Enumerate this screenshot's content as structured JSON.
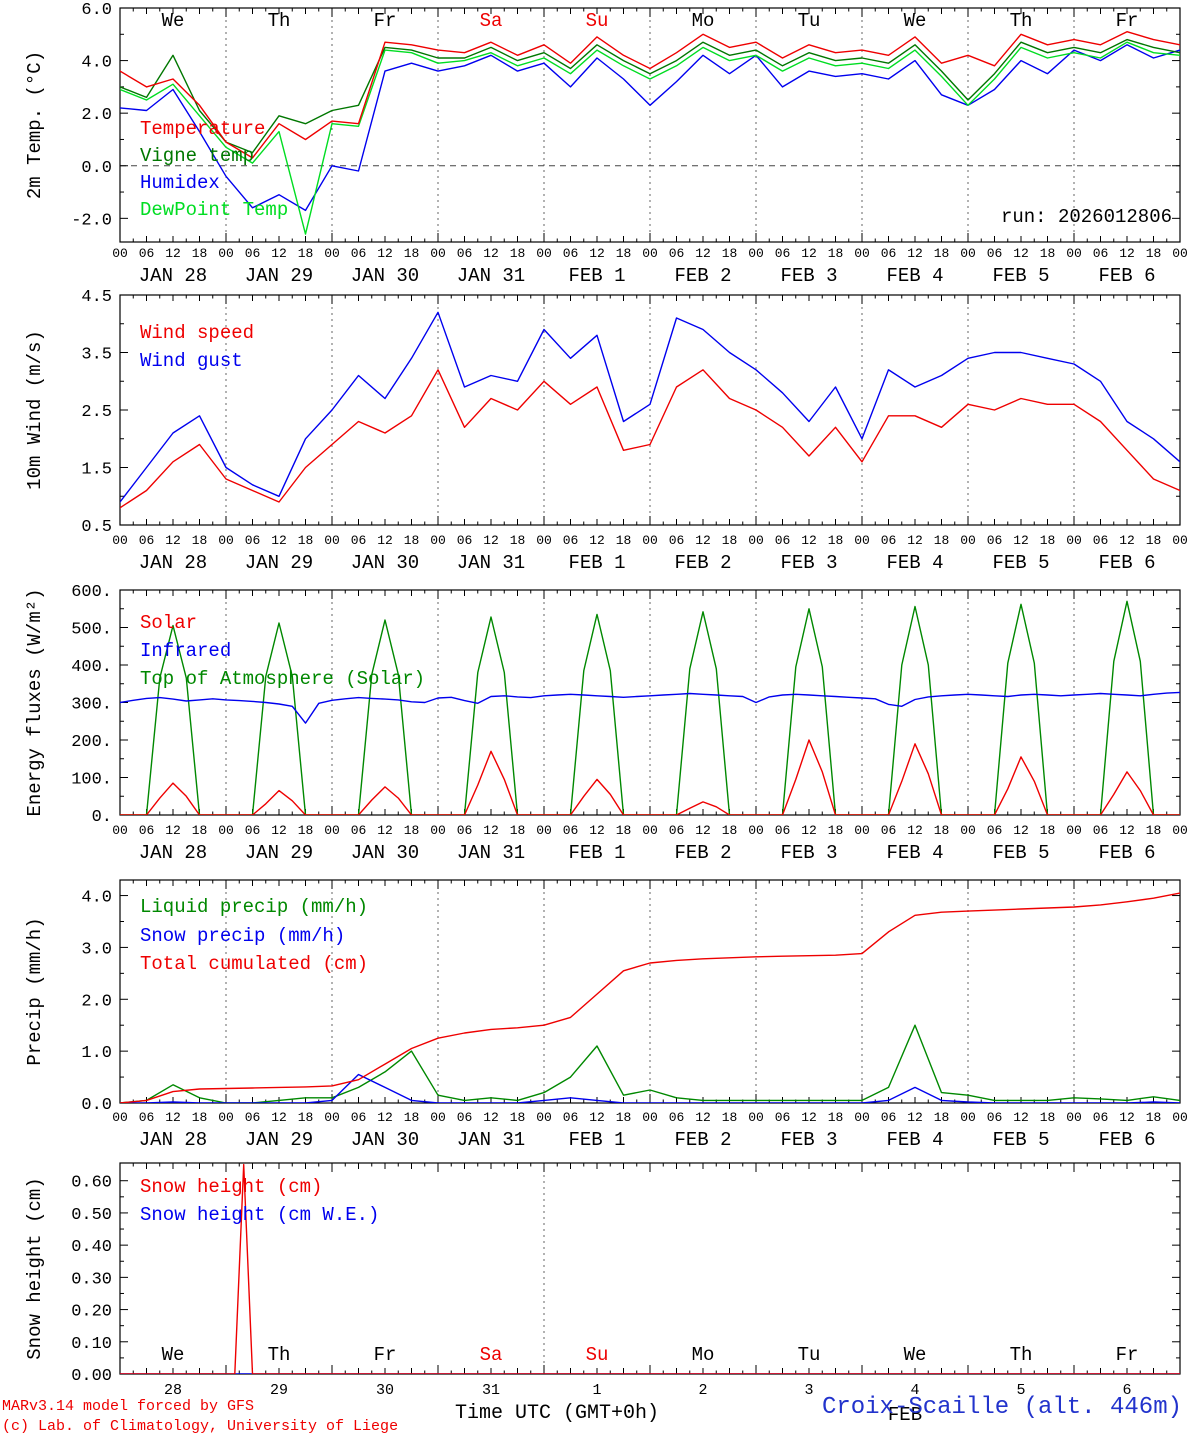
{
  "meta": {
    "run_label": "run: 2026012806",
    "station": "Croix-Scaille (alt. 446m)",
    "model_credit": "MARv3.14 model forced by GFS",
    "lab_credit": "(c) Lab. of Climatology, University of Liege",
    "xaxis_title": "Time UTC (GMT+0h)"
  },
  "axis": {
    "hours_total": 240,
    "hour_label_step": 6,
    "month_label": "FEB",
    "bottom_day_numbers": [
      "28",
      "29",
      "30",
      "31",
      "1",
      "2",
      "3",
      "4",
      "5",
      "6"
    ],
    "days": [
      {
        "date": "JAN 28",
        "dow": "We",
        "red": false
      },
      {
        "date": "JAN 29",
        "dow": "Th",
        "red": false
      },
      {
        "date": "JAN 30",
        "dow": "Fr",
        "red": false
      },
      {
        "date": "JAN 31",
        "dow": "Sa",
        "red": true
      },
      {
        "date": "FEB 1",
        "dow": "Su",
        "red": true
      },
      {
        "date": "FEB 2",
        "dow": "Mo",
        "red": false
      },
      {
        "date": "FEB 3",
        "dow": "Tu",
        "red": false
      },
      {
        "date": "FEB 4",
        "dow": "We",
        "red": false
      },
      {
        "date": "FEB 5",
        "dow": "Th",
        "red": false
      },
      {
        "date": "FEB 6",
        "dow": "Fr",
        "red": false
      }
    ]
  },
  "chart_data": {
    "type": "line",
    "x_unit": "hours since 2026-01-28 00 UTC",
    "x_range": [
      0,
      240
    ],
    "panels": [
      {
        "id": "temp-panel",
        "ylabel": "2m Temp. (°C)",
        "ylim": [
          -2.9,
          6.0
        ],
        "yticks": {
          "values": [
            6,
            4,
            2,
            0,
            -2
          ],
          "labels": [
            "6.0",
            "4.0",
            "2.0",
            "0.0",
            "-2.0"
          ]
        },
        "zero_line": true,
        "day_lines": "all",
        "series": [
          {
            "label": "Temperature",
            "color": "#ee0000",
            "step": 6,
            "values": [
              3.6,
              3.0,
              3.3,
              2.3,
              0.9,
              0.3,
              1.6,
              1.0,
              1.7,
              1.6,
              4.7,
              4.6,
              4.4,
              4.3,
              4.7,
              4.2,
              4.6,
              3.9,
              4.9,
              4.2,
              3.7,
              4.3,
              5.0,
              4.5,
              4.7,
              4.1,
              4.6,
              4.3,
              4.4,
              4.2,
              4.9,
              3.9,
              4.2,
              3.8,
              5.0,
              4.6,
              4.8,
              4.6,
              5.1,
              4.8,
              4.6
            ]
          },
          {
            "label": "Vigne temp",
            "color": "#007700",
            "step": 6,
            "values": [
              3.0,
              2.6,
              4.2,
              2.1,
              0.9,
              0.5,
              1.9,
              1.6,
              2.1,
              2.3,
              4.5,
              4.4,
              4.1,
              4.1,
              4.5,
              4.0,
              4.3,
              3.7,
              4.6,
              4.0,
              3.5,
              4.0,
              4.7,
              4.2,
              4.4,
              3.8,
              4.3,
              4.0,
              4.1,
              3.9,
              4.6,
              3.6,
              2.5,
              3.5,
              4.7,
              4.3,
              4.5,
              4.3,
              4.8,
              4.5,
              4.3
            ]
          },
          {
            "label": "Humidex",
            "color": "#0000ee",
            "step": 6,
            "values": [
              2.2,
              2.1,
              2.9,
              1.3,
              -0.4,
              -1.6,
              -1.1,
              -1.7,
              0.0,
              -0.2,
              3.6,
              3.9,
              3.6,
              3.8,
              4.2,
              3.6,
              3.9,
              3.0,
              4.1,
              3.3,
              2.3,
              3.2,
              4.2,
              3.5,
              4.2,
              3.0,
              3.6,
              3.4,
              3.5,
              3.3,
              4.0,
              2.7,
              2.3,
              2.9,
              4.0,
              3.5,
              4.4,
              4.0,
              4.6,
              4.1,
              4.4
            ]
          },
          {
            "label": "DewPoint Temp",
            "color": "#00dd22",
            "step": 6,
            "values": [
              2.9,
              2.5,
              3.1,
              1.9,
              0.7,
              0.1,
              1.3,
              -2.6,
              1.6,
              1.5,
              4.4,
              4.3,
              3.9,
              4.0,
              4.3,
              3.8,
              4.1,
              3.5,
              4.4,
              3.8,
              3.3,
              3.8,
              4.5,
              4.0,
              4.2,
              3.6,
              4.1,
              3.8,
              3.9,
              3.7,
              4.4,
              3.4,
              2.3,
              3.3,
              4.5,
              4.1,
              4.3,
              4.1,
              4.7,
              4.3,
              4.2
            ]
          }
        ]
      },
      {
        "id": "wind-panel",
        "ylabel": "10m Wind (m/s)",
        "ylim": [
          0.5,
          4.5
        ],
        "yticks": {
          "values": [
            4.5,
            3.5,
            2.5,
            1.5,
            0.5
          ],
          "labels": [
            "4.5",
            "3.5",
            "2.5",
            "1.5",
            "0.5"
          ]
        },
        "zero_line": false,
        "day_lines": "all",
        "series": [
          {
            "label": "Wind speed",
            "color": "#ee0000",
            "step": 6,
            "values": [
              0.8,
              1.1,
              1.6,
              1.9,
              1.3,
              1.1,
              0.9,
              1.5,
              1.9,
              2.3,
              2.1,
              2.4,
              3.2,
              2.2,
              2.7,
              2.5,
              3.0,
              2.6,
              2.9,
              1.8,
              1.9,
              2.9,
              3.2,
              2.7,
              2.5,
              2.2,
              1.7,
              2.2,
              1.6,
              2.4,
              2.4,
              2.2,
              2.6,
              2.5,
              2.7,
              2.6,
              2.6,
              2.3,
              1.8,
              1.3,
              1.1
            ]
          },
          {
            "label": "Wind gust",
            "color": "#0000ee",
            "step": 6,
            "values": [
              0.9,
              1.5,
              2.1,
              2.4,
              1.5,
              1.2,
              1.0,
              2.0,
              2.5,
              3.1,
              2.7,
              3.4,
              4.2,
              2.9,
              3.1,
              3.0,
              3.9,
              3.4,
              3.8,
              2.3,
              2.6,
              4.1,
              3.9,
              3.5,
              3.2,
              2.8,
              2.3,
              2.9,
              2.0,
              3.2,
              2.9,
              3.1,
              3.4,
              3.5,
              3.5,
              3.4,
              3.3,
              3.0,
              2.3,
              2.0,
              1.6
            ]
          }
        ]
      },
      {
        "id": "flux-panel",
        "ylabel": "Energy fluxes (W/m²)",
        "ylim": [
          0,
          600
        ],
        "yticks": {
          "values": [
            600,
            500,
            400,
            300,
            200,
            100,
            0
          ],
          "labels": [
            "600.",
            "500.",
            "400.",
            "300.",
            "200.",
            "100.",
            "0."
          ]
        },
        "zero_line": false,
        "day_lines": "all",
        "series": [
          {
            "label": "Solar",
            "color": "#ee0000",
            "step": 3,
            "values": [
              0,
              0,
              0,
              45,
              85,
              50,
              0,
              0,
              0,
              0,
              0,
              30,
              65,
              38,
              0,
              0,
              0,
              0,
              0,
              40,
              75,
              45,
              0,
              0,
              0,
              0,
              0,
              80,
              170,
              95,
              0,
              0,
              0,
              0,
              0,
              50,
              95,
              55,
              0,
              0,
              0,
              0,
              0,
              18,
              35,
              22,
              0,
              0,
              0,
              0,
              0,
              95,
              200,
              115,
              0,
              0,
              0,
              0,
              0,
              90,
              190,
              110,
              0,
              0,
              0,
              0,
              0,
              70,
              155,
              90,
              0,
              0,
              0,
              0,
              0,
              55,
              115,
              65,
              0,
              0,
              0
            ]
          },
          {
            "label": "Infrared",
            "color": "#0000ee",
            "step": 3,
            "values": [
              300,
              306,
              311,
              313,
              309,
              304,
              307,
              310,
              307,
              305,
              303,
              300,
              296,
              290,
              245,
              298,
              306,
              310,
              313,
              311,
              309,
              307,
              302,
              300,
              312,
              314,
              305,
              298,
              316,
              318,
              315,
              313,
              318,
              320,
              322,
              320,
              318,
              316,
              314,
              316,
              318,
              320,
              322,
              324,
              322,
              320,
              318,
              316,
              300,
              315,
              320,
              322,
              320,
              318,
              316,
              314,
              312,
              310,
              295,
              290,
              308,
              315,
              318,
              320,
              322,
              320,
              318,
              316,
              320,
              322,
              320,
              318,
              320,
              322,
              324,
              322,
              320,
              318,
              322,
              325,
              327
            ]
          },
          {
            "label": "Top of Atmosphere (Solar)",
            "color": "#008800",
            "step": 3,
            "values": [
              0,
              0,
              0,
              365,
              505,
              365,
              0,
              0,
              0,
              0,
              0,
              370,
              512,
              370,
              0,
              0,
              0,
              0,
              0,
              375,
              520,
              375,
              0,
              0,
              0,
              0,
              0,
              380,
              528,
              380,
              0,
              0,
              0,
              0,
              0,
              385,
              535,
              385,
              0,
              0,
              0,
              0,
              0,
              390,
              542,
              390,
              0,
              0,
              0,
              0,
              0,
              395,
              550,
              395,
              0,
              0,
              0,
              0,
              0,
              400,
              556,
              400,
              0,
              0,
              0,
              0,
              0,
              405,
              562,
              405,
              0,
              0,
              0,
              0,
              0,
              410,
              570,
              410,
              0,
              0,
              0
            ]
          }
        ]
      },
      {
        "id": "precip-panel",
        "ylabel": "Precip (mm/h)",
        "ylim": [
          0,
          4.3
        ],
        "yticks": {
          "values": [
            4,
            3,
            2,
            1,
            0
          ],
          "labels": [
            "4.0",
            "3.0",
            "2.0",
            "1.0",
            "0.0"
          ]
        },
        "zero_line": false,
        "day_lines": "all",
        "series": [
          {
            "label": "Liquid precip (mm/h)",
            "color": "#008800",
            "step": 6,
            "values": [
              0,
              0.05,
              0.35,
              0.1,
              0,
              0,
              0.05,
              0.1,
              0.1,
              0.3,
              0.6,
              1.0,
              0.15,
              0.05,
              0.1,
              0.05,
              0.2,
              0.5,
              1.1,
              0.15,
              0.25,
              0.1,
              0.05,
              0.05,
              0.05,
              0.05,
              0.05,
              0.05,
              0.05,
              0.3,
              1.5,
              0.2,
              0.15,
              0.05,
              0.05,
              0.05,
              0.1,
              0.08,
              0.05,
              0.12,
              0.05
            ]
          },
          {
            "label": "Snow precip (mm/h)",
            "color": "#0000ee",
            "step": 6,
            "values": [
              0,
              0,
              0.02,
              0,
              0,
              0,
              0,
              0,
              0.05,
              0.55,
              0.3,
              0.05,
              0,
              0,
              0,
              0,
              0.05,
              0.1,
              0.05,
              0,
              0,
              0,
              0,
              0,
              0,
              0,
              0,
              0,
              0,
              0.05,
              0.3,
              0.05,
              0.02,
              0,
              0,
              0,
              0,
              0,
              0,
              0.02,
              0
            ]
          },
          {
            "label": "Total cumulated (cm)",
            "color": "#ee0000",
            "step": 6,
            "values": [
              0.0,
              0.05,
              0.22,
              0.27,
              0.28,
              0.29,
              0.3,
              0.31,
              0.33,
              0.45,
              0.75,
              1.05,
              1.25,
              1.35,
              1.42,
              1.45,
              1.5,
              1.65,
              2.1,
              2.55,
              2.7,
              2.75,
              2.78,
              2.8,
              2.82,
              2.83,
              2.84,
              2.85,
              2.88,
              3.3,
              3.62,
              3.68,
              3.7,
              3.72,
              3.74,
              3.76,
              3.78,
              3.82,
              3.88,
              3.95,
              4.05
            ]
          }
        ]
      },
      {
        "id": "snow-panel",
        "ylabel": "Snow height (cm)",
        "ylim": [
          0,
          0.655
        ],
        "yticks": {
          "values": [
            0.6,
            0.5,
            0.4,
            0.3,
            0.2,
            0.1,
            0
          ],
          "labels": [
            "0.60",
            "0.50",
            "0.40",
            "0.30",
            "0.20",
            "0.10",
            "0.00"
          ]
        },
        "zero_line": false,
        "day_lines": [
          96
        ],
        "series": [
          {
            "label": "Snow height (cm)",
            "color": "#ee0000",
            "points": [
              [
                0,
                0
              ],
              [
                26,
                0
              ],
              [
                28,
                0.65
              ],
              [
                30,
                0
              ],
              [
                240,
                0
              ]
            ]
          },
          {
            "label": "Snow height (cm W.E.)",
            "color": "#0000ee",
            "points": [
              [
                0,
                0
              ],
              [
                240,
                0
              ]
            ]
          }
        ]
      }
    ]
  }
}
